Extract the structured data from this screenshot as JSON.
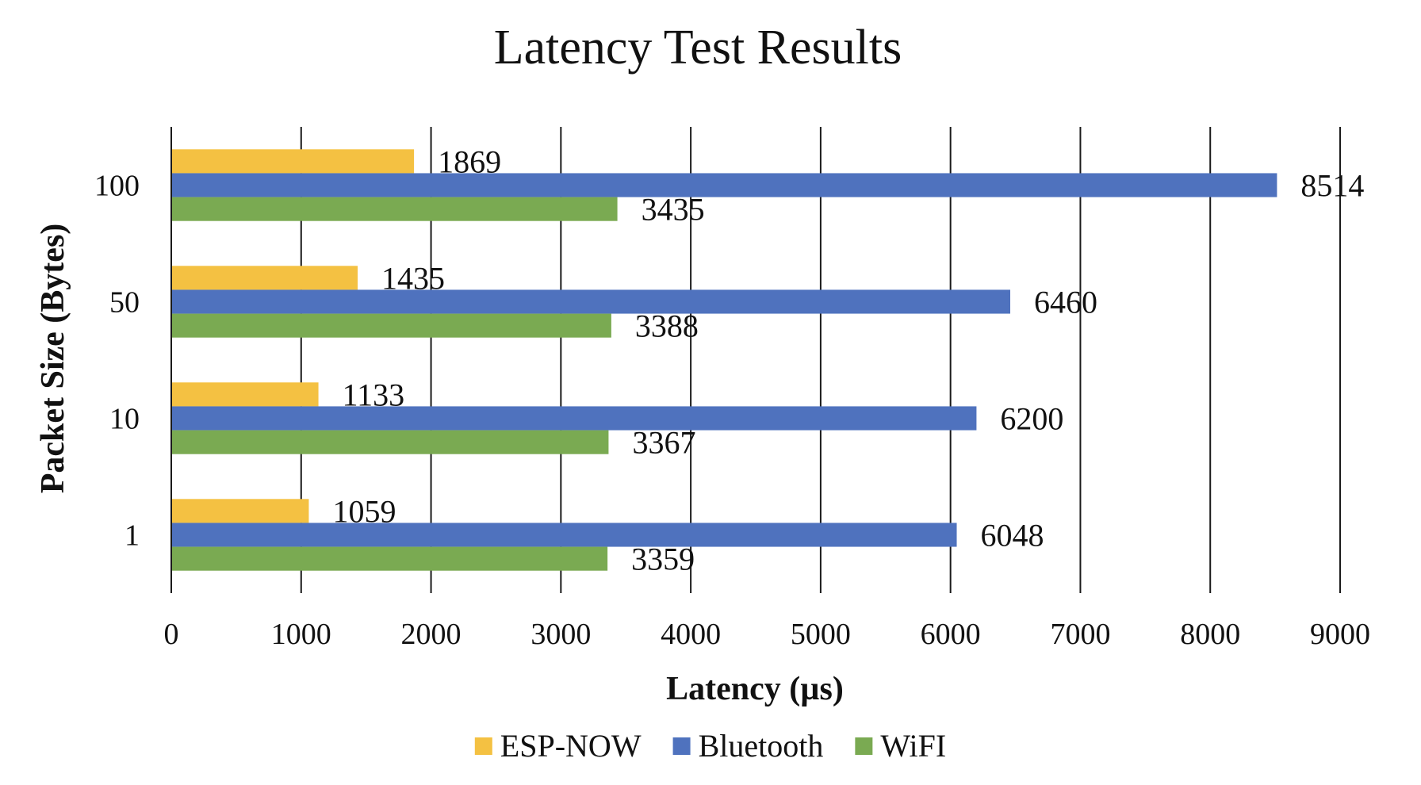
{
  "chart_data": {
    "type": "bar",
    "orientation": "horizontal",
    "title": "Latency Test Results",
    "xlabel": "Latency (µs)",
    "ylabel": "Packet Size (Bytes)",
    "categories": [
      "1",
      "10",
      "50",
      "100"
    ],
    "xlim": [
      0,
      9000
    ],
    "x_ticks": [
      "0",
      "1000",
      "2000",
      "3000",
      "4000",
      "5000",
      "6000",
      "7000",
      "8000",
      "9000"
    ],
    "grid": true,
    "legend_position": "bottom",
    "series": [
      {
        "name": "ESP-NOW",
        "color": "#F4C142",
        "values": [
          1059,
          1133,
          1435,
          1869
        ]
      },
      {
        "name": "Bluetooth",
        "color": "#4F72BE",
        "values": [
          6048,
          6200,
          6460,
          8514
        ]
      },
      {
        "name": "WiFI",
        "color": "#7AAA52",
        "values": [
          3359,
          3367,
          3388,
          3435
        ]
      }
    ]
  }
}
